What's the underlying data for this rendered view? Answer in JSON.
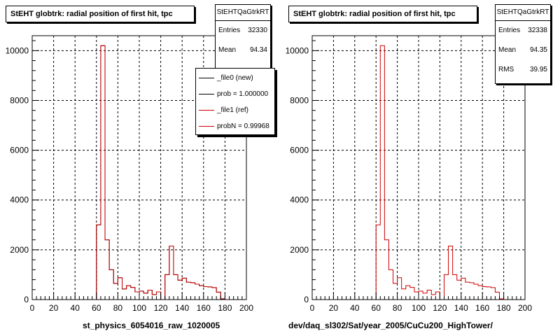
{
  "footer": "",
  "chart_data": [
    {
      "type": "bar",
      "title": "StEHT globtrk: radial position of first hit, tpc",
      "xlabel": "st_physics_6054016_raw_1020005",
      "ylabel": "",
      "xlim": [
        0,
        200
      ],
      "ylim": [
        0,
        10600
      ],
      "xticks": [
        0,
        20,
        40,
        60,
        80,
        100,
        120,
        140,
        160,
        180,
        200
      ],
      "yticks": [
        0,
        2000,
        4000,
        6000,
        8000,
        10000
      ],
      "grid": true,
      "stats": {
        "name": "StEHTQaGtrkRT",
        "rows": [
          {
            "label": "Entries",
            "value": "32330"
          },
          {
            "label": "Mean",
            "value": "94.34"
          }
        ]
      },
      "legend": [
        {
          "label": "_file0 (new)",
          "color": "#000000"
        },
        {
          "label": "prob = 1.000000",
          "color": "#000000"
        },
        {
          "label": "_file1 (ref)",
          "color": "#cc0000"
        },
        {
          "label": "probN = 0.99968",
          "color": "#cc0000"
        }
      ],
      "bin_width": 4,
      "series": [
        {
          "name": "_file0 (new)",
          "color": "#000000",
          "bin_edges_start": 0,
          "values": [
            0,
            0,
            0,
            0,
            0,
            0,
            0,
            0,
            0,
            0,
            0,
            0,
            0,
            0,
            0,
            3000,
            10200,
            2400,
            1200,
            650,
            880,
            430,
            560,
            490,
            310,
            340,
            260,
            380,
            200,
            310,
            0,
            1000,
            2150,
            1000,
            780,
            860,
            700,
            680,
            620,
            560,
            520,
            510,
            480,
            300,
            30,
            0,
            0,
            0,
            0,
            0
          ]
        },
        {
          "name": "_file1 (ref)",
          "color": "#cc0000",
          "bin_edges_start": 0,
          "values": [
            0,
            0,
            0,
            0,
            0,
            0,
            0,
            0,
            0,
            0,
            0,
            0,
            0,
            0,
            0,
            3000,
            10200,
            2400,
            1200,
            650,
            880,
            430,
            560,
            490,
            310,
            340,
            260,
            380,
            200,
            310,
            0,
            1000,
            2150,
            1000,
            780,
            860,
            700,
            680,
            620,
            560,
            520,
            510,
            480,
            300,
            30,
            0,
            0,
            0,
            0,
            0
          ]
        }
      ]
    },
    {
      "type": "bar",
      "title": "StEHT globtrk: radial position of first hit, tpc",
      "xlabel": "dev/daq_sl302/Sat/year_2005/CuCu200_HighTower/",
      "ylabel": "",
      "xlim": [
        0,
        200
      ],
      "ylim": [
        0,
        10600
      ],
      "xticks": [
        0,
        20,
        40,
        60,
        80,
        100,
        120,
        140,
        160,
        180,
        200
      ],
      "yticks": [
        0,
        2000,
        4000,
        6000,
        8000,
        10000
      ],
      "grid": true,
      "stats": {
        "name": "StEHTQaGtrkRT",
        "rows": [
          {
            "label": "Entries",
            "value": "32338"
          },
          {
            "label": "Mean",
            "value": "94.35"
          },
          {
            "label": "RMS",
            "value": "39.95"
          }
        ]
      },
      "bin_width": 4,
      "series": [
        {
          "name": "",
          "color": "#cc0000",
          "bin_edges_start": 0,
          "values": [
            0,
            0,
            0,
            0,
            0,
            0,
            0,
            0,
            0,
            0,
            0,
            0,
            0,
            0,
            0,
            3000,
            10200,
            2400,
            1200,
            650,
            880,
            430,
            560,
            490,
            310,
            340,
            260,
            380,
            200,
            310,
            0,
            1000,
            2150,
            1000,
            780,
            860,
            700,
            680,
            620,
            560,
            520,
            510,
            480,
            300,
            30,
            0,
            0,
            0,
            0,
            0
          ]
        }
      ]
    }
  ]
}
